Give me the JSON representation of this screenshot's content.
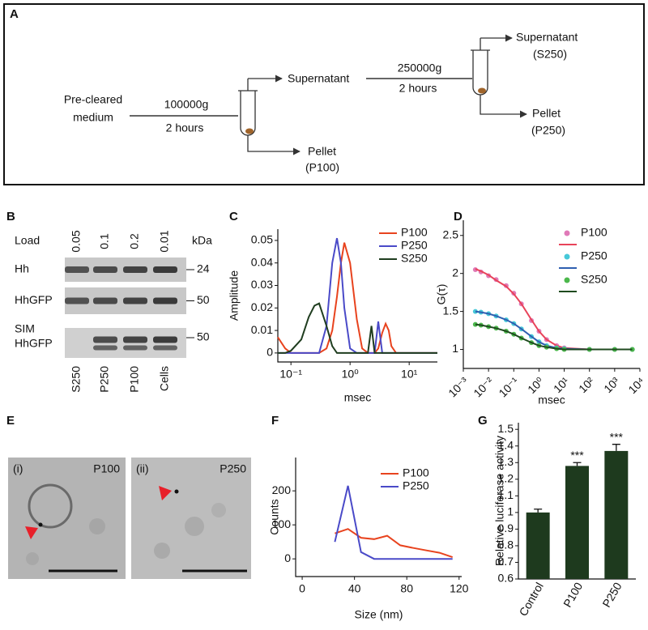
{
  "diagram": {
    "panel_label": "A",
    "input": [
      "Pre-cleared",
      "medium"
    ],
    "step1": {
      "speed": "100000g",
      "time": "2 hours"
    },
    "supernatant1": "Supernatant",
    "pellet1": [
      "Pellet",
      "(P100)"
    ],
    "step2": {
      "speed": "250000g",
      "time": "2 hours"
    },
    "supernatant2": [
      "Supernatant",
      "(S250)"
    ],
    "pellet2": [
      "Pellet",
      "(P250)"
    ]
  },
  "blot": {
    "panel_label": "B",
    "load_label": "Load",
    "loads": [
      "0.05",
      "0.1",
      "0.2",
      "0.01"
    ],
    "unit": "kDa",
    "rows": [
      {
        "label": [
          "Hh"
        ],
        "marker": "24"
      },
      {
        "label": [
          "HhGFP"
        ],
        "marker": "50"
      },
      {
        "label": [
          "SIM",
          "HhGFP"
        ],
        "marker": "50"
      }
    ],
    "lanes": [
      "S250",
      "P250",
      "P100",
      "Cells"
    ]
  },
  "micrographs": {
    "panel_label": "E",
    "images": [
      {
        "index": "(i)",
        "sample": "P100"
      },
      {
        "index": "(ii)",
        "sample": "P250"
      }
    ]
  },
  "chart_data": [
    {
      "type": "line",
      "panel_label": "C",
      "ylabel": "Amplitude",
      "xlabel": "msec",
      "xscale": "log",
      "xlim": [
        0.06,
        30
      ],
      "xticks": [
        {
          "value": 0.1,
          "label": "10⁻¹"
        },
        {
          "value": 1,
          "label": "10⁰"
        },
        {
          "value": 10,
          "label": "10¹"
        }
      ],
      "ylim": [
        -0.004,
        0.055
      ],
      "yticks": [
        0,
        0.01,
        0.02,
        0.03,
        0.04,
        0.05
      ],
      "legend": "upper right",
      "x": [
        0.06,
        0.08,
        0.1,
        0.15,
        0.2,
        0.25,
        0.3,
        0.4,
        0.5,
        0.6,
        0.7,
        0.8,
        1,
        1.3,
        1.6,
        2,
        2.3,
        2.6,
        3,
        3.5,
        4,
        4.5,
        5,
        6,
        8,
        12,
        20,
        30
      ],
      "series": [
        {
          "name": "P100",
          "color": "#e8431e",
          "values": [
            0.007,
            0.002,
            0,
            0,
            0,
            0,
            0,
            0.002,
            0.01,
            0.025,
            0.04,
            0.049,
            0.04,
            0.015,
            0.002,
            0,
            0,
            0,
            0.002,
            0.009,
            0.013,
            0.01,
            0.003,
            0,
            0,
            0,
            0,
            0
          ]
        },
        {
          "name": "P250",
          "color": "#4a4ac8",
          "values": [
            0,
            0,
            0,
            0,
            0,
            0,
            0,
            0.012,
            0.04,
            0.051,
            0.04,
            0.02,
            0.002,
            0,
            0,
            0,
            0,
            0,
            0.014,
            0,
            0,
            0,
            0,
            0,
            0,
            0,
            0,
            0
          ]
        },
        {
          "name": "S250",
          "color": "#1f3d1f",
          "values": [
            0,
            0,
            0.001,
            0.006,
            0.016,
            0.021,
            0.022,
            0.012,
            0.003,
            0,
            0,
            0,
            0,
            0,
            0,
            0,
            0.012,
            0,
            0,
            0,
            0,
            0,
            0,
            0,
            0,
            0,
            0,
            0
          ]
        }
      ]
    },
    {
      "type": "scatter",
      "panel_label": "D",
      "ylabel": "G(τ)",
      "xlabel": "msec",
      "xscale": "log",
      "xlim": [
        0.001,
        10000
      ],
      "xticks": [
        {
          "value": 0.001,
          "label": "10⁻³"
        },
        {
          "value": 0.01,
          "label": "10⁻²"
        },
        {
          "value": 0.1,
          "label": "10⁻¹"
        },
        {
          "value": 1,
          "label": "10⁰"
        },
        {
          "value": 10,
          "label": "10¹"
        },
        {
          "value": 100,
          "label": "10²"
        },
        {
          "value": 1000,
          "label": "10³"
        },
        {
          "value": 10000,
          "label": "10⁴"
        }
      ],
      "ylim": [
        0.75,
        2.7
      ],
      "yticks": [
        1,
        1.5,
        2,
        2.5
      ],
      "legend": "upper right",
      "x": [
        0.003,
        0.005,
        0.01,
        0.02,
        0.05,
        0.1,
        0.2,
        0.5,
        1,
        2,
        5,
        10,
        100,
        1000,
        5000
      ],
      "series": [
        {
          "name": "P100",
          "color": "#e07ab8",
          "values": [
            2.05,
            2.02,
            1.97,
            1.92,
            1.84,
            1.74,
            1.6,
            1.38,
            1.24,
            1.13,
            1.05,
            1.02,
            1.0,
            1.0,
            1.0
          ],
          "fit_color": "#e8435a",
          "fit": [
            2.06,
            2.03,
            1.98,
            1.91,
            1.83,
            1.73,
            1.6,
            1.39,
            1.24,
            1.13,
            1.05,
            1.02,
            1.0,
            1.0,
            1.0
          ]
        },
        {
          "name": "P250",
          "color": "#46c8d8",
          "values": [
            1.5,
            1.49,
            1.47,
            1.44,
            1.39,
            1.34,
            1.27,
            1.17,
            1.1,
            1.05,
            1.02,
            1.01,
            1.0,
            1.0,
            1.0
          ],
          "fit_color": "#2f5fb0",
          "fit": [
            1.5,
            1.49,
            1.47,
            1.44,
            1.39,
            1.34,
            1.27,
            1.17,
            1.1,
            1.05,
            1.02,
            1.01,
            1.0,
            1.0,
            1.0
          ]
        },
        {
          "name": "S250",
          "color": "#4cb84c",
          "values": [
            1.33,
            1.32,
            1.3,
            1.28,
            1.24,
            1.2,
            1.15,
            1.09,
            1.05,
            1.03,
            1.01,
            1.0,
            1.0,
            1.0,
            1.0
          ],
          "fit_color": "#1f4a1f",
          "fit": [
            1.33,
            1.32,
            1.3,
            1.28,
            1.24,
            1.2,
            1.15,
            1.09,
            1.05,
            1.03,
            1.01,
            1.0,
            1.0,
            1.0,
            1.0
          ]
        }
      ]
    },
    {
      "type": "line",
      "panel_label": "F",
      "ylabel": "Counts",
      "xlabel": "Size (nm)",
      "xlim": [
        -5,
        122
      ],
      "xticks": [
        0,
        40,
        80,
        120
      ],
      "ylim": [
        -52,
        298
      ],
      "yticks": [
        0,
        100,
        200
      ],
      "legend": "upper right",
      "x": [
        25,
        35,
        45,
        55,
        65,
        75,
        85,
        95,
        105,
        115
      ],
      "series": [
        {
          "name": "P100",
          "color": "#e8431e",
          "values": [
            75,
            88,
            62,
            58,
            68,
            40,
            32,
            25,
            18,
            5
          ]
        },
        {
          "name": "P250",
          "color": "#4a4ac8",
          "values": [
            50,
            215,
            20,
            0,
            0,
            0,
            0,
            0,
            0,
            0
          ]
        }
      ]
    },
    {
      "type": "bar",
      "panel_label": "G",
      "ylabel": "Relative luciferase activity",
      "categories": [
        "Control",
        "P100",
        "P250"
      ],
      "values": [
        1.0,
        1.28,
        1.37
      ],
      "errors": [
        0.02,
        0.02,
        0.04
      ],
      "significance": [
        null,
        "***",
        "***"
      ],
      "color": "#1e3a1e",
      "ylim": [
        0.6,
        1.54
      ],
      "yticks": [
        0.6,
        0.7,
        0.8,
        0.9,
        1,
        1.1,
        1.2,
        1.3,
        1.4,
        1.5
      ]
    }
  ]
}
